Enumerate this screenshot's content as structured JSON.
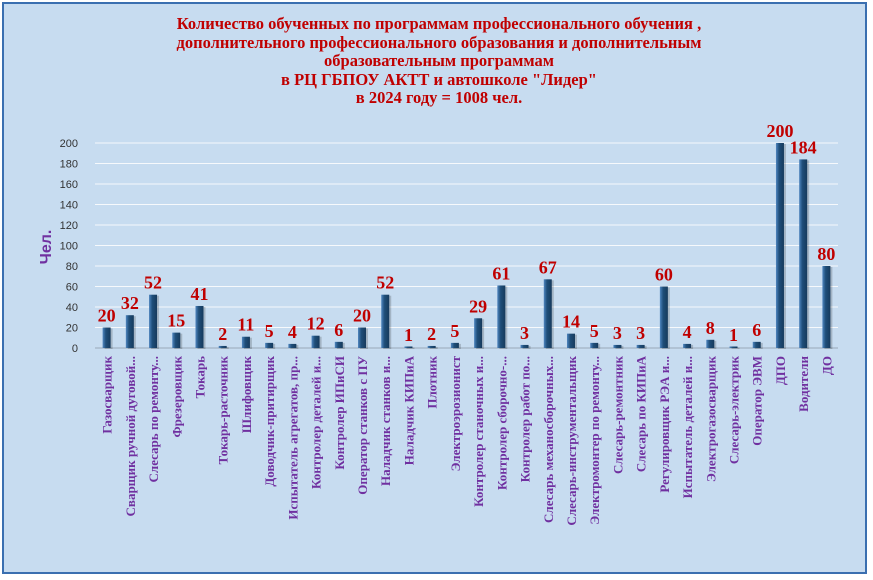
{
  "title_lines": [
    "Количество обученных по программам профессионального обучения ,",
    "дополнительного профессионального образования и дополнительным",
    "образовательным программам",
    "в РЦ ГБПОУ АКТТ и автошколе \"Лидер\"",
    "в 2024 году = 1008 чел."
  ],
  "colors": {
    "background": "#c7dcf0",
    "bar": "#1f4e79",
    "bar_highlight": "#4f86c0",
    "data_label": "#c00000",
    "category_label": "#7030a0",
    "grid": "#ffffff"
  },
  "chart_data": {
    "type": "bar",
    "ylabel": "Чел.",
    "ylim": [
      0,
      200
    ],
    "yticks": [
      0,
      20,
      40,
      60,
      80,
      100,
      120,
      140,
      160,
      180,
      200
    ],
    "grid": true,
    "categories": [
      "Газосварщик",
      "Сварщик ручной дуговой...",
      "Слесарь по ремонту...",
      "Фрезеровщик",
      "Токарь",
      "Токарь-расточник",
      "Шлифовщик",
      "Доводчик-притирщик",
      "Испытатель агрегатов, пр...",
      "Контролер деталей и...",
      "Контролер ИПиСИ",
      "Оператор станков с ПУ",
      "Наладчик станков и...",
      "Наладчик КИПиА",
      "Плотник",
      "Электроэрозионист",
      "Контролер станочных и...",
      "Контролер сборочно-...",
      "Контролер работ по...",
      "Слесарь механосборочных...",
      "Слесарь-инструментальщик",
      "Электромонтер по ремонту...",
      "Слесарь-ремонтник",
      "Слесарь по КИПиА",
      "Регулировщик РЭА и...",
      "Испытатель деталей и...",
      "Электрогазосварщик",
      "Слесарь-электрик",
      "Оператор ЭВМ",
      "ДПО",
      "Водители",
      "ДО"
    ],
    "values": [
      20,
      32,
      52,
      15,
      41,
      2,
      11,
      5,
      4,
      12,
      6,
      20,
      52,
      1,
      2,
      5,
      29,
      61,
      3,
      67,
      14,
      5,
      3,
      3,
      60,
      4,
      8,
      1,
      6,
      200,
      184,
      80
    ]
  }
}
